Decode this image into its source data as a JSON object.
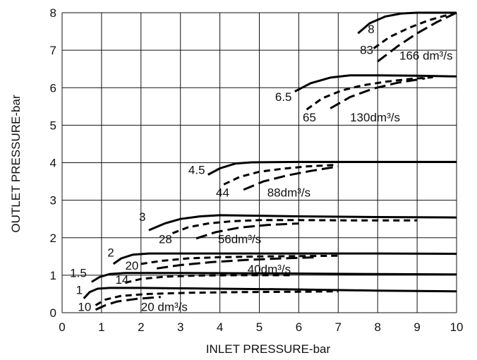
{
  "chart_data": {
    "type": "line",
    "title": "",
    "xlabel": "INLET PRESSURE-bar",
    "ylabel": "OUTLET PRESSURE-bar",
    "xlim": [
      0,
      10.5
    ],
    "ylim": [
      0,
      8
    ],
    "xticks": [
      "0",
      "1",
      "2",
      "3",
      "4",
      "5",
      "6",
      "7",
      "8",
      "9",
      "10"
    ],
    "yticks": [
      "0",
      "1",
      "2",
      "3",
      "4",
      "5",
      "6",
      "7",
      "8"
    ],
    "grid": true,
    "series": [
      {
        "name": "8",
        "label": "8",
        "style": "solid",
        "x": [
          7.5,
          7.8,
          8.2,
          8.6,
          9.0,
          10.0
        ],
        "y": [
          7.45,
          7.72,
          7.9,
          7.98,
          8.0,
          8.0
        ]
      },
      {
        "name": "83",
        "label": "83",
        "style": "dashed",
        "x": [
          7.9,
          8.3,
          8.8,
          9.3,
          9.7,
          10.0
        ],
        "y": [
          7.05,
          7.35,
          7.6,
          7.8,
          7.92,
          8.0
        ]
      },
      {
        "name": "166 dm³/s",
        "label": "166 dm³/s",
        "style": "longdash",
        "x": [
          8.0,
          8.5,
          9.0,
          9.5,
          10.0
        ],
        "y": [
          6.7,
          7.1,
          7.45,
          7.75,
          8.0
        ]
      },
      {
        "name": "6.5",
        "label": "6.5",
        "style": "solid",
        "x": [
          5.9,
          6.3,
          6.8,
          7.3,
          8.0,
          9.0,
          10.0
        ],
        "y": [
          5.9,
          6.12,
          6.27,
          6.33,
          6.33,
          6.32,
          6.3
        ]
      },
      {
        "name": "65",
        "label": "65",
        "style": "dashed",
        "x": [
          6.2,
          6.6,
          7.1,
          7.6,
          8.2,
          8.8,
          9.4
        ],
        "y": [
          5.42,
          5.72,
          5.93,
          6.06,
          6.16,
          6.23,
          6.28
        ]
      },
      {
        "name": "130dm³/s",
        "label": "130dm³/s",
        "style": "longdash",
        "x": [
          6.8,
          7.3,
          7.9,
          8.5,
          9.2
        ],
        "y": [
          5.45,
          5.75,
          5.98,
          6.13,
          6.25
        ]
      },
      {
        "name": "4.5",
        "label": "4.5",
        "style": "solid",
        "x": [
          3.7,
          4.0,
          4.4,
          4.8,
          6.0,
          8.0,
          10.0
        ],
        "y": [
          3.68,
          3.85,
          3.98,
          4.01,
          4.02,
          4.02,
          4.02
        ]
      },
      {
        "name": "44",
        "label": "44",
        "style": "dashed",
        "x": [
          4.1,
          4.5,
          5.0,
          5.6,
          6.2,
          6.9
        ],
        "y": [
          3.42,
          3.62,
          3.76,
          3.84,
          3.9,
          3.94
        ]
      },
      {
        "name": "88dm³/s",
        "label": "88dm³/s",
        "style": "longdash",
        "x": [
          4.6,
          5.1,
          5.7,
          6.3,
          7.0
        ],
        "y": [
          3.28,
          3.5,
          3.66,
          3.78,
          3.9
        ]
      },
      {
        "name": "3",
        "label": "3",
        "style": "solid",
        "x": [
          2.2,
          2.6,
          3.0,
          3.5,
          4.0,
          6.0,
          8.0,
          10.0
        ],
        "y": [
          2.2,
          2.38,
          2.5,
          2.57,
          2.6,
          2.57,
          2.55,
          2.54
        ]
      },
      {
        "name": "28",
        "label": "28",
        "style": "dashed",
        "x": [
          2.8,
          3.2,
          3.7,
          4.3,
          5.0,
          6.0,
          7.5,
          9.0
        ],
        "y": [
          2.12,
          2.28,
          2.38,
          2.44,
          2.47,
          2.47,
          2.46,
          2.46
        ]
      },
      {
        "name": "56dm³/s",
        "label": "56dm³/s",
        "style": "longdash",
        "x": [
          3.4,
          3.9,
          4.5,
          5.2,
          6.0
        ],
        "y": [
          1.98,
          2.15,
          2.27,
          2.34,
          2.38
        ]
      },
      {
        "name": "2",
        "label": "2",
        "style": "solid",
        "x": [
          1.3,
          1.5,
          1.8,
          2.2,
          3.0,
          5.0,
          8.0,
          10.0
        ],
        "y": [
          1.3,
          1.45,
          1.55,
          1.58,
          1.58,
          1.58,
          1.58,
          1.57
        ]
      },
      {
        "name": "20",
        "label": "20",
        "style": "dashed",
        "x": [
          2.0,
          2.5,
          3.2,
          4.0,
          5.0,
          6.0,
          7.0
        ],
        "y": [
          1.3,
          1.38,
          1.45,
          1.48,
          1.5,
          1.51,
          1.52
        ]
      },
      {
        "name": "40dm³/s",
        "label": "40dm³/s",
        "style": "longdash",
        "x": [
          2.4,
          3.0,
          3.8,
          4.7,
          5.6,
          6.5
        ],
        "y": [
          1.18,
          1.27,
          1.35,
          1.41,
          1.45,
          1.48
        ]
      },
      {
        "name": "1.5",
        "label": "1.5",
        "style": "solid",
        "x": [
          0.75,
          0.95,
          1.2,
          1.6,
          2.5,
          5.0,
          8.0,
          10.0
        ],
        "y": [
          0.82,
          0.95,
          1.03,
          1.06,
          1.06,
          1.05,
          1.03,
          1.02
        ]
      },
      {
        "name": "14",
        "label": "14",
        "style": "dashed",
        "x": [
          1.6,
          2.0,
          2.6,
          3.4,
          4.5,
          5.8
        ],
        "y": [
          0.8,
          0.9,
          0.96,
          0.99,
          1.0,
          1.0
        ]
      },
      {
        "name": "1",
        "label": "1",
        "style": "solid",
        "x": [
          0.55,
          0.7,
          0.9,
          1.2,
          2.0,
          4.0,
          6.0,
          8.0,
          10.0
        ],
        "y": [
          0.38,
          0.55,
          0.64,
          0.66,
          0.66,
          0.64,
          0.62,
          0.59,
          0.57
        ]
      },
      {
        "name": "10",
        "label": "10",
        "style": "dashed",
        "x": [
          0.85,
          1.1,
          1.5,
          2.2,
          3.2,
          4.5,
          6.0,
          7.0
        ],
        "y": [
          0.2,
          0.35,
          0.45,
          0.5,
          0.53,
          0.55,
          0.56,
          0.57
        ]
      },
      {
        "name": "20 dm³/s",
        "label": "20 dm³/s",
        "style": "longdash",
        "x": [
          0.85,
          1.1,
          1.4,
          1.9,
          2.5
        ],
        "y": [
          0.08,
          0.2,
          0.3,
          0.37,
          0.42
        ]
      }
    ],
    "labels": [
      {
        "text": "8",
        "x": 7.75,
        "y": 7.45
      },
      {
        "text": "83",
        "x": 7.55,
        "y": 6.9
      },
      {
        "text": "166 dm³/s",
        "x": 8.55,
        "y": 6.75
      },
      {
        "text": "6.5",
        "x": 5.4,
        "y": 5.65
      },
      {
        "text": "65",
        "x": 6.1,
        "y": 5.1
      },
      {
        "text": "130dm³/s",
        "x": 7.3,
        "y": 5.1
      },
      {
        "text": "4.5",
        "x": 3.2,
        "y": 3.7
      },
      {
        "text": "44",
        "x": 3.9,
        "y": 3.1
      },
      {
        "text": "88dm³/s",
        "x": 5.2,
        "y": 3.1
      },
      {
        "text": "3",
        "x": 1.95,
        "y": 2.45
      },
      {
        "text": "28",
        "x": 2.45,
        "y": 1.85
      },
      {
        "text": "56dm³/s",
        "x": 3.95,
        "y": 1.85
      },
      {
        "text": "2",
        "x": 1.15,
        "y": 1.5
      },
      {
        "text": "20",
        "x": 1.6,
        "y": 1.15
      },
      {
        "text": "40dm³/s",
        "x": 4.7,
        "y": 1.05
      },
      {
        "text": "1.5",
        "x": 0.2,
        "y": 0.95
      },
      {
        "text": "14",
        "x": 1.35,
        "y": 0.77
      },
      {
        "text": "1",
        "x": 0.35,
        "y": 0.5
      },
      {
        "text": "10",
        "x": 0.4,
        "y": 0.05
      },
      {
        "text": "20 dm³/s",
        "x": 2.0,
        "y": 0.05
      }
    ]
  }
}
